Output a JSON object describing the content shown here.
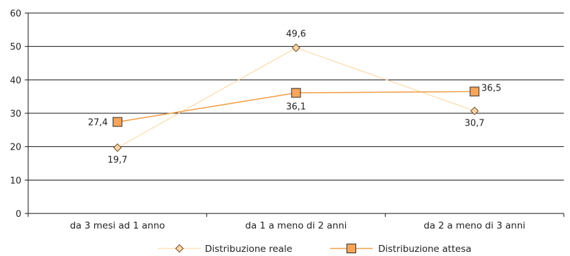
{
  "chart_data": {
    "type": "line",
    "categories": [
      "da 3 mesi ad 1 anno",
      "da 1 a meno di 2 anni",
      "da 2 a meno di 3 anni"
    ],
    "ylim": [
      0,
      60
    ],
    "yticks": [
      0,
      10,
      20,
      30,
      40,
      50,
      60
    ],
    "grid": true,
    "legend_position": "bottom",
    "series": [
      {
        "name": "Distribuzione reale",
        "values": [
          19.7,
          49.6,
          30.7
        ],
        "labels": [
          "19,7",
          "49,6",
          "30,7"
        ],
        "marker": "diamond",
        "line_color": "#fcd9a8",
        "marker_fill": "#fbd5a5",
        "marker_stroke": "#6b4e2a"
      },
      {
        "name": "Distribuzione attesa",
        "values": [
          27.4,
          36.1,
          36.5
        ],
        "labels": [
          "27,4",
          "36,1",
          "36,5"
        ],
        "marker": "square",
        "line_color": "#f0a04b",
        "marker_fill": "#f6a55a",
        "marker_stroke": "#2b2b2b"
      }
    ]
  }
}
